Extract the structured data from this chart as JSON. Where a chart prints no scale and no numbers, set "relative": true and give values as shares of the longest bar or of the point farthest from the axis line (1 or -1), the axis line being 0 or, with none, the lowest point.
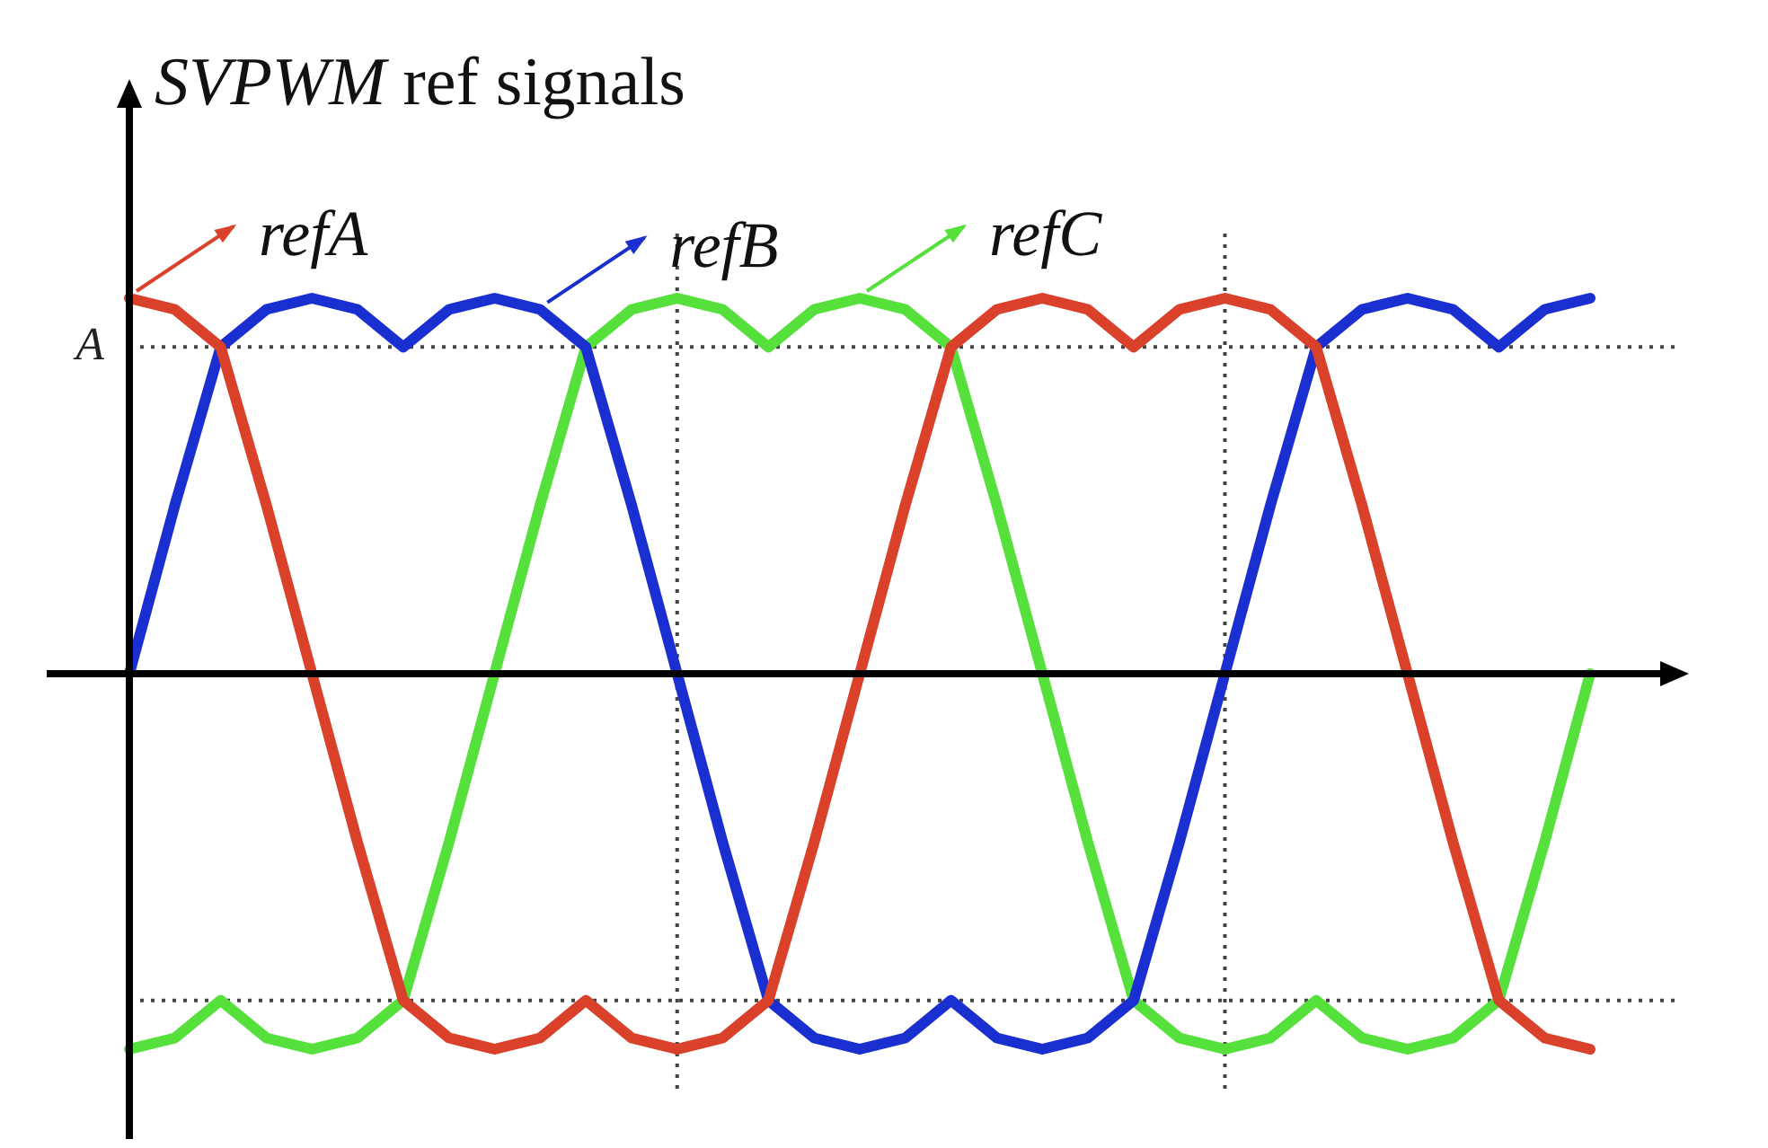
{
  "chart_data": {
    "type": "line",
    "title": "SVPWM ref signals",
    "relative": true,
    "categories": [
      null,
      null,
      null,
      null,
      null,
      null,
      null,
      null,
      null,
      null,
      null,
      null,
      null,
      null,
      null,
      null,
      null,
      null,
      null,
      null,
      null,
      null,
      null,
      null,
      null,
      null,
      null,
      null,
      null,
      null,
      null,
      null,
      null
    ],
    "series": [
      {
        "name": "refA",
        "color": "#d9412a",
        "values": [
          1,
          0.97,
          0.87,
          0.45,
          0,
          -0.45,
          -0.87,
          -0.97,
          -1,
          -0.97,
          -0.87,
          -0.97,
          -1,
          -0.97,
          -0.87,
          -0.45,
          0,
          0.45,
          0.87,
          0.97,
          1,
          0.97,
          0.87,
          0.97,
          1,
          0.97,
          0.87,
          0.45,
          0,
          -0.45,
          -0.87,
          -0.97,
          -1
        ]
      },
      {
        "name": "refB",
        "color": "#1a2fd0",
        "values": [
          0,
          0.45,
          0.87,
          0.97,
          1,
          0.97,
          0.87,
          0.97,
          1,
          0.97,
          0.87,
          0.45,
          0,
          -0.45,
          -0.87,
          -0.97,
          -1,
          -0.97,
          -0.87,
          -0.97,
          -1,
          -0.97,
          -0.87,
          -0.45,
          0,
          0.45,
          0.87,
          0.97,
          1,
          0.97,
          0.87,
          0.97,
          1
        ]
      },
      {
        "name": "refC",
        "color": "#55e03c",
        "values": [
          -1,
          -0.97,
          -0.87,
          -0.97,
          -1,
          -0.97,
          -0.87,
          -0.45,
          0,
          0.45,
          0.87,
          0.97,
          1,
          0.97,
          0.87,
          0.97,
          1,
          0.97,
          0.87,
          0.45,
          0,
          -0.45,
          -0.87,
          -0.97,
          -1,
          -0.97,
          -0.87,
          -0.97,
          -1,
          -0.97,
          -0.87,
          -0.45,
          0
        ]
      }
    ],
    "ref_lines": [
      {
        "axis": "y",
        "value": 0.87,
        "label": "A",
        "line_style": "dotted"
      },
      {
        "axis": "y",
        "value": -0.87,
        "label": null,
        "line_style": "dotted"
      }
    ],
    "legend": "top",
    "grid": false,
    "marker": "none",
    "line_style": "solid"
  }
}
